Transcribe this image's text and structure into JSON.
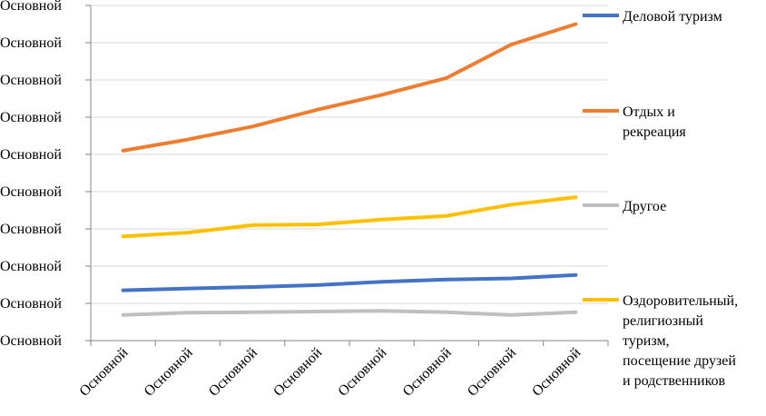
{
  "chart_data": {
    "type": "line",
    "title": "",
    "xlabel": "",
    "ylabel": "",
    "y_tick_labels": [
      "Основной",
      "Основной",
      "Основной",
      "Основной",
      "Основной",
      "Основной",
      "Основной",
      "Основной",
      "Основной",
      "Основной"
    ],
    "x_tick_labels": [
      "Основной",
      "Основной",
      "Основной",
      "Основной",
      "Основной",
      "Основной",
      "Основной",
      "Основной"
    ],
    "ylim": [
      0,
      9
    ],
    "grid": true,
    "legend_position": "right",
    "series": [
      {
        "name": "Деловой туризм",
        "color": "#4472C4",
        "values": [
          1.35,
          1.4,
          1.44,
          1.49,
          1.58,
          1.64,
          1.67,
          1.76
        ]
      },
      {
        "name": "Отдых и рекреация",
        "color": "#ED7D31",
        "values": [
          5.1,
          5.4,
          5.75,
          6.2,
          6.6,
          7.05,
          7.95,
          8.5
        ]
      },
      {
        "name": "Другое",
        "color": "#BFBFBF",
        "values": [
          0.69,
          0.75,
          0.76,
          0.78,
          0.8,
          0.76,
          0.69,
          0.76
        ]
      },
      {
        "name": "Оздоровительный, религиозный туризм, посещение друзей и родственников",
        "color": "#FFC000",
        "values": [
          2.8,
          2.9,
          3.1,
          3.12,
          3.25,
          3.35,
          3.65,
          3.85
        ]
      }
    ]
  },
  "legend": {
    "items": [
      {
        "lines": [
          "Деловой туризм"
        ]
      },
      {
        "lines": [
          "Отдых и",
          "рекреация"
        ]
      },
      {
        "lines": [
          "Другое"
        ]
      },
      {
        "lines": [
          "Оздоровительный,",
          "религиозный",
          "туризм,",
          "посещение друзей",
          "и родственников"
        ]
      }
    ]
  }
}
